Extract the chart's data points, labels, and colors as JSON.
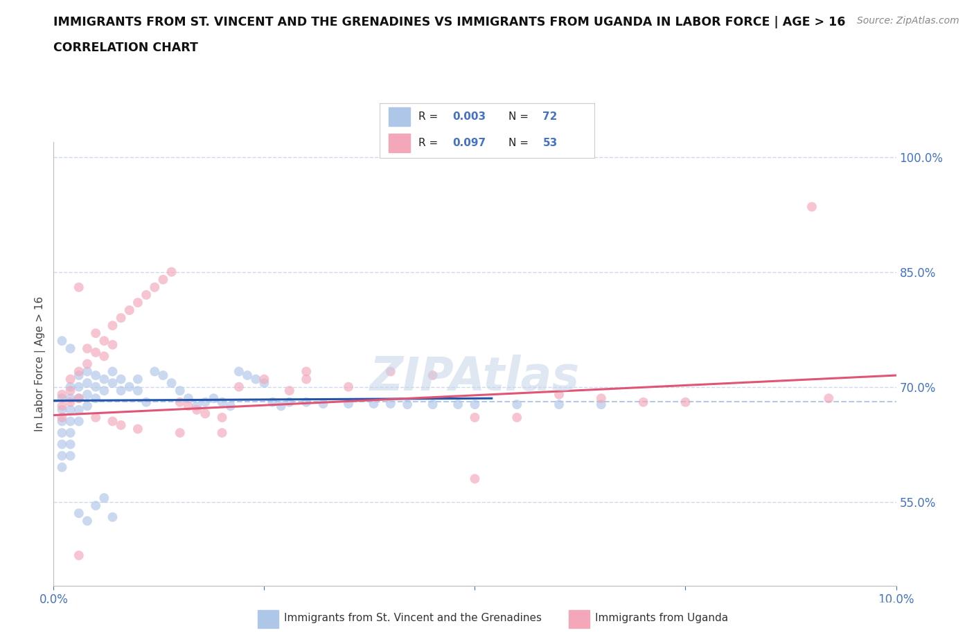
{
  "title_line1": "IMMIGRANTS FROM ST. VINCENT AND THE GRENADINES VS IMMIGRANTS FROM UGANDA IN LABOR FORCE | AGE > 16",
  "title_line2": "CORRELATION CHART",
  "source_text": "Source: ZipAtlas.com",
  "ylabel": "In Labor Force | Age > 16",
  "xlim": [
    0.0,
    0.1
  ],
  "ylim": [
    0.44,
    1.02
  ],
  "ytick_positions": [
    0.55,
    0.7,
    0.85,
    1.0
  ],
  "ytick_labels": [
    "55.0%",
    "70.0%",
    "85.0%",
    "100.0%"
  ],
  "blue_color": "#aec6e8",
  "pink_color": "#f4a7b9",
  "trend_blue_color": "#2255aa",
  "trend_pink_color": "#e05575",
  "dashed_line_color": "#aac4e8",
  "grid_color": "#ccd9ee",
  "watermark_color": "#c5d5ea",
  "label1": "Immigrants from St. Vincent and the Grenadines",
  "label2": "Immigrants from Uganda",
  "axis_color": "#4472c4",
  "background_color": "#ffffff",
  "blue_x": [
    0.001,
    0.001,
    0.001,
    0.001,
    0.001,
    0.001,
    0.001,
    0.002,
    0.002,
    0.002,
    0.002,
    0.002,
    0.002,
    0.002,
    0.003,
    0.003,
    0.003,
    0.003,
    0.003,
    0.004,
    0.004,
    0.004,
    0.004,
    0.005,
    0.005,
    0.005,
    0.006,
    0.006,
    0.007,
    0.007,
    0.008,
    0.008,
    0.009,
    0.01,
    0.01,
    0.011,
    0.012,
    0.013,
    0.014,
    0.015,
    0.016,
    0.017,
    0.018,
    0.019,
    0.02,
    0.021,
    0.022,
    0.023,
    0.024,
    0.025,
    0.026,
    0.027,
    0.028,
    0.03,
    0.032,
    0.035,
    0.038,
    0.04,
    0.042,
    0.045,
    0.048,
    0.05,
    0.055,
    0.06,
    0.065,
    0.001,
    0.002,
    0.003,
    0.004,
    0.005,
    0.006,
    0.007
  ],
  "blue_y": [
    0.685,
    0.67,
    0.655,
    0.64,
    0.625,
    0.61,
    0.595,
    0.7,
    0.685,
    0.67,
    0.655,
    0.64,
    0.625,
    0.61,
    0.715,
    0.7,
    0.685,
    0.67,
    0.655,
    0.72,
    0.705,
    0.69,
    0.675,
    0.715,
    0.7,
    0.685,
    0.71,
    0.695,
    0.72,
    0.705,
    0.71,
    0.695,
    0.7,
    0.71,
    0.695,
    0.68,
    0.72,
    0.715,
    0.705,
    0.695,
    0.685,
    0.675,
    0.68,
    0.685,
    0.68,
    0.675,
    0.72,
    0.715,
    0.71,
    0.705,
    0.68,
    0.675,
    0.68,
    0.68,
    0.678,
    0.678,
    0.678,
    0.678,
    0.677,
    0.677,
    0.677,
    0.677,
    0.677,
    0.677,
    0.677,
    0.76,
    0.75,
    0.535,
    0.525,
    0.545,
    0.555,
    0.53
  ],
  "pink_x": [
    0.001,
    0.001,
    0.001,
    0.002,
    0.002,
    0.002,
    0.003,
    0.003,
    0.003,
    0.004,
    0.004,
    0.005,
    0.005,
    0.006,
    0.006,
    0.007,
    0.007,
    0.008,
    0.009,
    0.01,
    0.011,
    0.012,
    0.013,
    0.014,
    0.015,
    0.016,
    0.017,
    0.018,
    0.02,
    0.022,
    0.025,
    0.028,
    0.03,
    0.035,
    0.04,
    0.045,
    0.05,
    0.055,
    0.06,
    0.065,
    0.07,
    0.075,
    0.09,
    0.003,
    0.005,
    0.007,
    0.008,
    0.01,
    0.015,
    0.02,
    0.03,
    0.05,
    0.092
  ],
  "pink_y": [
    0.69,
    0.675,
    0.66,
    0.71,
    0.695,
    0.68,
    0.83,
    0.72,
    0.685,
    0.75,
    0.73,
    0.77,
    0.745,
    0.76,
    0.74,
    0.78,
    0.755,
    0.79,
    0.8,
    0.81,
    0.82,
    0.83,
    0.84,
    0.85,
    0.68,
    0.675,
    0.67,
    0.665,
    0.66,
    0.7,
    0.71,
    0.695,
    0.71,
    0.7,
    0.72,
    0.715,
    0.66,
    0.66,
    0.69,
    0.685,
    0.68,
    0.68,
    0.935,
    0.48,
    0.66,
    0.655,
    0.65,
    0.645,
    0.64,
    0.64,
    0.72,
    0.58,
    0.685
  ],
  "blue_trend_x": [
    0.0,
    0.052
  ],
  "blue_trend_y": [
    0.682,
    0.685
  ],
  "pink_trend_x": [
    0.0,
    0.1
  ],
  "pink_trend_y": [
    0.663,
    0.715
  ],
  "dashed_line_y": 0.681,
  "marker_size": 100,
  "alpha": 0.65
}
